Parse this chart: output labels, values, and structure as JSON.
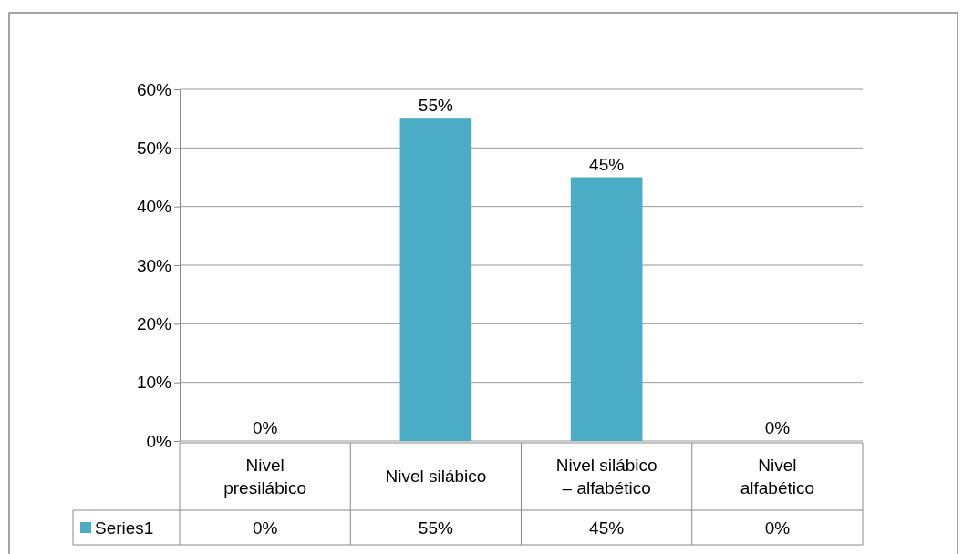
{
  "chart_data": {
    "type": "bar",
    "categories": [
      "Nivel presilábico",
      "Nivel silábico",
      "Nivel silábico – alfabético",
      "Nivel alfabético"
    ],
    "series": [
      {
        "name": "Series1",
        "color": "#4bacc6",
        "values": [
          0,
          55,
          45,
          0
        ],
        "value_labels": [
          "0%",
          "55%",
          "45%",
          "0%"
        ]
      }
    ],
    "ylim": [
      0,
      60
    ],
    "yticks": [
      {
        "value": 0,
        "label": "0%"
      },
      {
        "value": 10,
        "label": "10%"
      },
      {
        "value": 20,
        "label": "20%"
      },
      {
        "value": 30,
        "label": "30%"
      },
      {
        "value": 40,
        "label": "40%"
      },
      {
        "value": 50,
        "label": "50%"
      },
      {
        "value": 60,
        "label": "60%"
      }
    ],
    "grid": "y",
    "legend": "bottom"
  }
}
